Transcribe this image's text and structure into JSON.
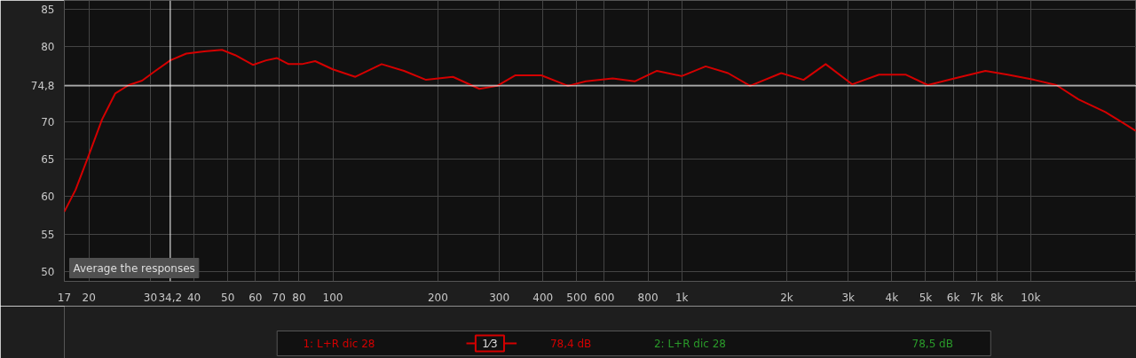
{
  "chart_data": {
    "type": "line",
    "x": [
      17,
      18.3,
      20,
      21.8,
      23.8,
      26,
      28.4,
      31,
      34.2,
      38,
      42.8,
      48.1,
      52.5,
      59,
      64.4,
      69.2,
      74.7,
      81.5,
      89,
      100,
      116,
      138,
      160,
      185,
      221,
      263,
      296,
      333,
      396,
      472,
      531,
      634,
      733,
      849,
      1000,
      1171,
      1357,
      1570,
      1928,
      2234,
      2585,
      3082,
      3675,
      4379,
      5072,
      6045,
      7419,
      8590,
      10240,
      11850,
      13710,
      16360,
      18920,
      20000
    ],
    "series": [
      {
        "name": "1: L+R dic 28",
        "color": "#d40000",
        "values": [
          58.0,
          60.9,
          65.6,
          70.3,
          73.8,
          74.9,
          75.5,
          76.8,
          78.2,
          79.1,
          79.4,
          79.6,
          78.9,
          77.6,
          78.2,
          78.5,
          77.7,
          77.7,
          78.1,
          77.0,
          76.0,
          77.7,
          76.8,
          75.6,
          76.0,
          74.4,
          74.8,
          76.2,
          76.2,
          74.8,
          75.4,
          75.8,
          75.4,
          76.8,
          76.1,
          77.4,
          76.5,
          74.8,
          76.5,
          75.6,
          77.7,
          75.0,
          76.3,
          76.3,
          74.9,
          75.8,
          76.8,
          76.3,
          75.6,
          74.9,
          73.0,
          71.3,
          69.5,
          68.8
        ]
      }
    ],
    "log": "x",
    "xlim": [
      17,
      20100
    ],
    "ylim": [
      48.7,
      86.2
    ],
    "xticks": [
      17,
      20,
      30,
      40,
      50,
      60,
      70,
      80,
      100,
      200,
      300,
      400,
      500,
      600,
      800,
      {
        "value": 1000,
        "label": "1k"
      },
      {
        "value": 2000,
        "label": "2k"
      },
      {
        "value": 3000,
        "label": "3k"
      },
      {
        "value": 4000,
        "label": "4k"
      },
      {
        "value": 5000,
        "label": "5k"
      },
      {
        "value": 6000,
        "label": "6k"
      },
      {
        "value": 7000,
        "label": "7k"
      },
      {
        "value": 8000,
        "label": "8k"
      },
      {
        "value": 10000,
        "label": "10k"
      }
    ],
    "yticks": [
      50,
      55,
      60,
      65,
      70,
      {
        "value": 75,
        "label": null
      },
      80,
      85
    ],
    "grid": true,
    "legend": "bottom",
    "line_style": "solid",
    "ref_lines": [
      {
        "axis": "x",
        "value": 34.2,
        "label": "34,2",
        "color": "#ffffff"
      },
      {
        "axis": "y",
        "value": 74.8,
        "label": "74,8",
        "color": "#ffffff"
      }
    ],
    "annotations": [
      "Average the responses",
      "1⁄3",
      "78,4 dB",
      "2: L+R dic 28",
      "78,5 dB"
    ]
  }
}
